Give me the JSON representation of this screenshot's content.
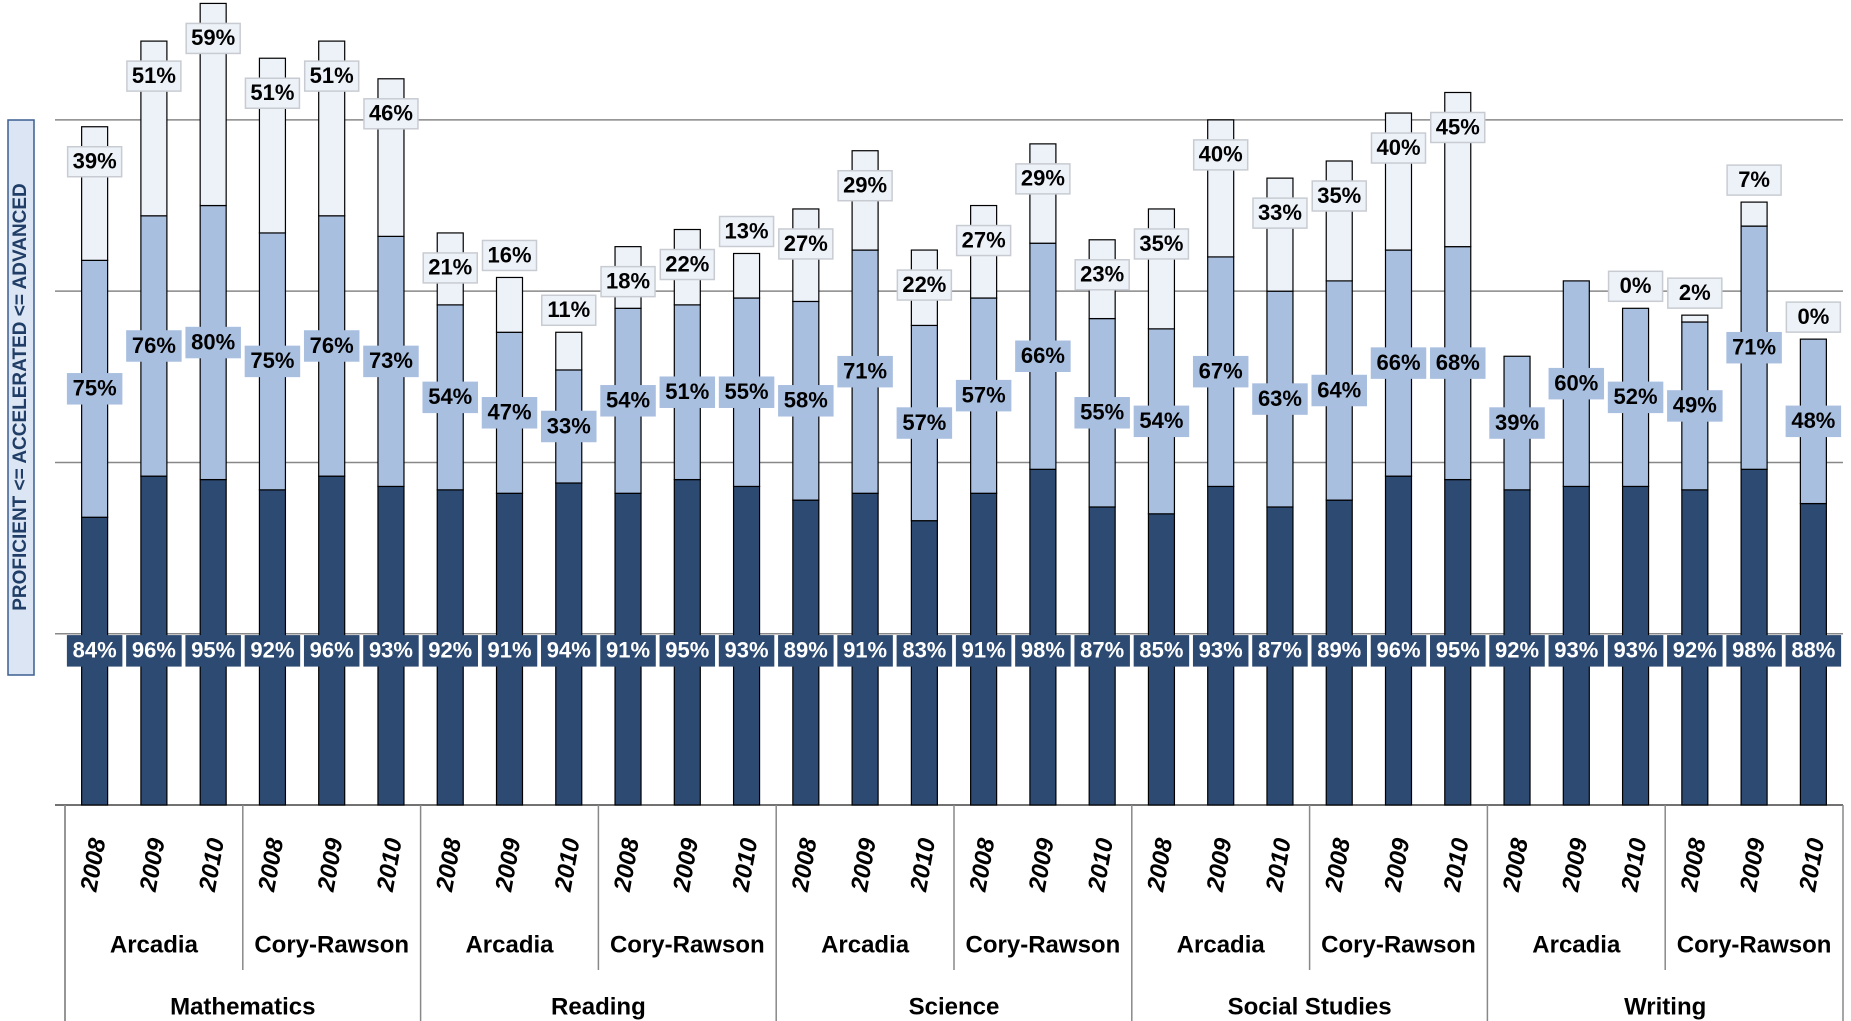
{
  "chart_data": {
    "type": "stacked_bar",
    "y_label": "PROFICIENT <= ACCELERATED <= ADVANCED",
    "categories": [
      "2008",
      "2009",
      "2010",
      "2008",
      "2009",
      "2010",
      "2008",
      "2009",
      "2010",
      "2008",
      "2009",
      "2010",
      "2008",
      "2009",
      "2010",
      "2008",
      "2009",
      "2010",
      "2008",
      "2009",
      "2010",
      "2008",
      "2009",
      "2010",
      "2008",
      "2009",
      "2010",
      "2008",
      "2009",
      "2010"
    ],
    "schools": [
      "Arcadia",
      "Cory-Rawson",
      "Arcadia",
      "Cory-Rawson",
      "Arcadia",
      "Cory-Rawson",
      "Arcadia",
      "Cory-Rawson",
      "Arcadia",
      "Cory-Rawson"
    ],
    "subjects": [
      "Mathematics",
      "Reading",
      "Science",
      "Social Studies",
      "Writing"
    ],
    "ylim": [
      0,
      235
    ],
    "yticks": [
      0,
      50,
      100,
      150,
      200
    ],
    "grid": true,
    "series": [
      {
        "color": "#2d4a72",
        "label_text_color": "#ffffff",
        "values": [
          84,
          96,
          95,
          92,
          96,
          93,
          92,
          91,
          94,
          91,
          95,
          93,
          89,
          91,
          83,
          91,
          98,
          87,
          85,
          93,
          87,
          89,
          96,
          95,
          92,
          93,
          93,
          92,
          98,
          88
        ],
        "value_labels": [
          "84%",
          "96%",
          "95%",
          "92%",
          "96%",
          "93%",
          "92%",
          "91%",
          "94%",
          "91%",
          "95%",
          "93%",
          "89%",
          "91%",
          "83%",
          "91%",
          "98%",
          "87%",
          "85%",
          "93%",
          "87%",
          "89%",
          "96%",
          "95%",
          "92%",
          "93%",
          "93%",
          "92%",
          "98%",
          "88%"
        ]
      },
      {
        "color": "#a9bfe0",
        "label_text_color": "#000000",
        "values": [
          75,
          76,
          80,
          75,
          76,
          73,
          54,
          47,
          33,
          54,
          51,
          55,
          58,
          71,
          57,
          57,
          66,
          55,
          54,
          67,
          63,
          64,
          66,
          68,
          39,
          60,
          52,
          49,
          71,
          48
        ],
        "value_labels": [
          "75%",
          "76%",
          "80%",
          "75%",
          "76%",
          "73%",
          "54%",
          "47%",
          "33%",
          "54%",
          "51%",
          "55%",
          "58%",
          "71%",
          "57%",
          "57%",
          "66%",
          "55%",
          "54%",
          "67%",
          "63%",
          "64%",
          "66%",
          "68%",
          "39%",
          "60%",
          "52%",
          "49%",
          "71%",
          "48%"
        ]
      },
      {
        "color": "#edf2f9",
        "label_text_color": "#000000",
        "values": [
          39,
          51,
          59,
          51,
          51,
          46,
          21,
          16,
          11,
          18,
          22,
          13,
          27,
          29,
          22,
          27,
          29,
          23,
          35,
          40,
          33,
          35,
          40,
          45,
          null,
          null,
          0,
          2,
          7,
          0
        ],
        "value_labels": [
          "39%",
          "51%",
          "59%",
          "51%",
          "51%",
          "46%",
          "21%",
          "16%",
          "11%",
          "18%",
          "22%",
          "13%",
          "27%",
          "29%",
          "22%",
          "27%",
          "29%",
          "23%",
          "35%",
          "40%",
          "33%",
          "35%",
          "40%",
          "45%",
          null,
          null,
          "0%",
          "2%",
          "7%",
          "0%"
        ]
      }
    ]
  }
}
